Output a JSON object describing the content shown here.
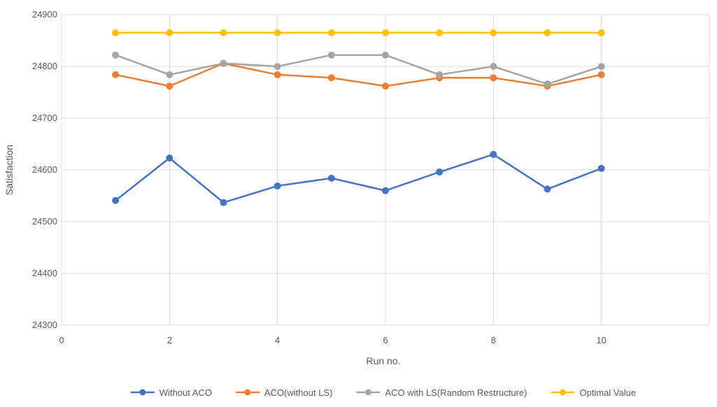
{
  "chart_data": {
    "type": "scatter",
    "title": "",
    "xlabel": "Run no.",
    "ylabel": "Satisfaction",
    "xlim": [
      0,
      12
    ],
    "ylim": [
      24300,
      24900
    ],
    "x_ticks": [
      0,
      2,
      4,
      6,
      8,
      10
    ],
    "y_ticks": [
      24300,
      24400,
      24500,
      24600,
      24700,
      24800,
      24900
    ],
    "x_tick_labels": [
      "0",
      "2",
      "4",
      "6",
      "8",
      "10"
    ],
    "y_tick_labels": [
      "24300",
      "24400",
      "24500",
      "24600",
      "24700",
      "24800",
      "24900"
    ],
    "grid": "vertical and horizontal major gridlines",
    "legend_position": "bottom",
    "x": [
      1,
      2,
      3,
      4,
      5,
      6,
      7,
      8,
      9,
      10
    ],
    "series": [
      {
        "name": "Without ACO",
        "color": "#4472C4",
        "values": [
          24541,
          24623,
          24537,
          24569,
          24584,
          24560,
          24596,
          24630,
          24563,
          24603
        ]
      },
      {
        "name": "ACO(without LS)",
        "color": "#ED7D31",
        "values": [
          24784,
          24762,
          24806,
          24784,
          24778,
          24762,
          24778,
          24778,
          24762,
          24784
        ]
      },
      {
        "name": "ACO with LS(Random Restructure)",
        "color": "#A5A5A5",
        "values": [
          24822,
          24784,
          24806,
          24800,
          24822,
          24822,
          24784,
          24800,
          24766,
          24800
        ]
      },
      {
        "name": "Optimal Value",
        "color": "#FFC000",
        "values": [
          24865,
          24865,
          24865,
          24865,
          24865,
          24865,
          24865,
          24865,
          24865,
          24865
        ]
      }
    ]
  }
}
